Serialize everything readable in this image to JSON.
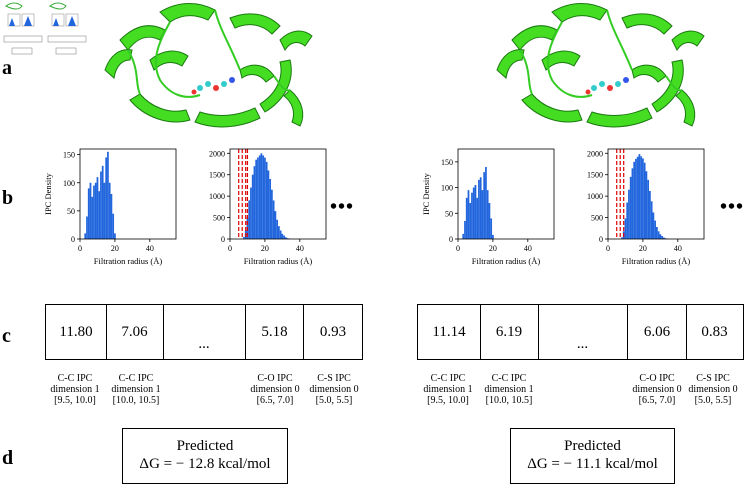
{
  "panel_labels": {
    "a": "a",
    "b": "b",
    "c": "c",
    "d": "d"
  },
  "ellipsis": "•••",
  "inner_ellipsis": "...",
  "left": {
    "features": [
      {
        "value": "11.80",
        "label_lines": [
          "C-C IPC",
          "dimension 1",
          "[9.5, 10.0]"
        ]
      },
      {
        "value": "7.06",
        "label_lines": [
          "C-C IPC",
          "dimension 1",
          "[10.0, 10.5]"
        ]
      },
      {
        "value": "5.18",
        "label_lines": [
          "C-O IPC",
          "dimension 0",
          "[6.5, 7.0]"
        ]
      },
      {
        "value": "0.93",
        "label_lines": [
          "C-S IPC",
          "dimension 0",
          "[5.0, 5.5]"
        ]
      }
    ],
    "prediction": {
      "line1": "Predicted",
      "line2": "ΔG = − 12.8 kcal/mol"
    }
  },
  "right": {
    "features": [
      {
        "value": "11.14",
        "label_lines": [
          "C-C IPC",
          "dimension 1",
          "[9.5, 10.0]"
        ]
      },
      {
        "value": "6.19",
        "label_lines": [
          "C-C IPC",
          "dimension 1",
          "[10.0, 10.5]"
        ]
      },
      {
        "value": "6.06",
        "label_lines": [
          "C-O IPC",
          "dimension 0",
          "[6.5, 7.0]"
        ]
      },
      {
        "value": "0.83",
        "label_lines": [
          "C-S IPC",
          "dimension 0",
          "[5.0, 5.5]"
        ]
      }
    ],
    "prediction": {
      "line1": "Predicted",
      "line2": "ΔG = − 11.1 kcal/mol"
    }
  },
  "chart_data": [
    {
      "type": "bar",
      "id": "left-hist-1",
      "xlabel": "Filtration radius (Å)",
      "ylabel": "IPC Density",
      "xlim": [
        0,
        55
      ],
      "ylim": [
        0,
        160
      ],
      "xticks": [
        0,
        20,
        40
      ],
      "yticks": [
        0,
        50,
        100,
        150
      ],
      "x": [
        3,
        4,
        5,
        6,
        7,
        8,
        9,
        10,
        11,
        12,
        13,
        14,
        15,
        16,
        17,
        18,
        19,
        20
      ],
      "values": [
        10,
        40,
        90,
        100,
        75,
        95,
        100,
        110,
        85,
        120,
        130,
        100,
        145,
        155,
        100,
        80,
        45,
        10
      ],
      "color": "#2266dd"
    },
    {
      "type": "bar",
      "id": "left-hist-2",
      "xlabel": "Filtration radius (Å)",
      "ylabel": "",
      "xlim": [
        0,
        55
      ],
      "ylim": [
        0,
        2100
      ],
      "xticks": [
        0,
        20,
        40
      ],
      "yticks": [
        0,
        500,
        1000,
        1500,
        2000
      ],
      "x": [
        8,
        9,
        10,
        11,
        12,
        13,
        14,
        15,
        16,
        17,
        18,
        19,
        20,
        21,
        22,
        23,
        24,
        25,
        26,
        27,
        28,
        29,
        30,
        31,
        32,
        33,
        34,
        35
      ],
      "values": [
        50,
        200,
        500,
        900,
        1200,
        1500,
        1700,
        1850,
        1900,
        1950,
        2000,
        1950,
        1900,
        1800,
        1600,
        1400,
        1150,
        900,
        650,
        450,
        300,
        200,
        120,
        80,
        40,
        20,
        10,
        5
      ],
      "dashed_lines_x": [
        5,
        7,
        9,
        10
      ],
      "color": "#2266dd",
      "line_color": "#dd0000"
    },
    {
      "type": "bar",
      "id": "right-hist-1",
      "xlabel": "Filtration radius (Å)",
      "ylabel": "IPC Density",
      "xlim": [
        0,
        55
      ],
      "ylim": [
        0,
        175
      ],
      "xticks": [
        0,
        20,
        40
      ],
      "yticks": [
        0,
        50,
        100,
        150
      ],
      "x": [
        3,
        4,
        5,
        6,
        7,
        8,
        9,
        10,
        11,
        12,
        13,
        14,
        15,
        16,
        17,
        18,
        19,
        20
      ],
      "values": [
        10,
        35,
        80,
        95,
        70,
        90,
        100,
        105,
        80,
        115,
        120,
        95,
        130,
        140,
        95,
        70,
        40,
        8
      ],
      "color": "#2266dd"
    },
    {
      "type": "bar",
      "id": "right-hist-2",
      "xlabel": "Filtration radius (Å)",
      "ylabel": "",
      "xlim": [
        0,
        55
      ],
      "ylim": [
        0,
        2100
      ],
      "xticks": [
        0,
        20,
        40
      ],
      "yticks": [
        0,
        500,
        1000,
        1500,
        2000
      ],
      "x": [
        8,
        9,
        10,
        11,
        12,
        13,
        14,
        15,
        16,
        17,
        18,
        19,
        20,
        21,
        22,
        23,
        24,
        25,
        26,
        27,
        28,
        29,
        30,
        31,
        32,
        33,
        34,
        35
      ],
      "values": [
        40,
        180,
        480,
        850,
        1150,
        1450,
        1650,
        1800,
        1870,
        1920,
        1980,
        1930,
        1880,
        1780,
        1580,
        1380,
        1120,
        880,
        620,
        430,
        280,
        180,
        110,
        70,
        35,
        18,
        8,
        4
      ],
      "dashed_lines_x": [
        5,
        7,
        9
      ],
      "color": "#2266dd",
      "line_color": "#dd0000"
    }
  ]
}
